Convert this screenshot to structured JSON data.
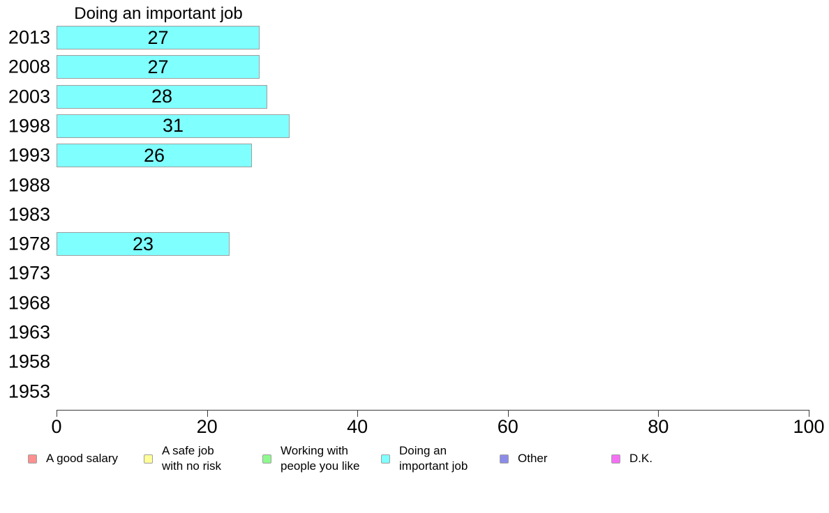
{
  "chart_data": {
    "type": "bar",
    "orientation": "horizontal",
    "title": "Doing an important job",
    "categories": [
      "2013",
      "2008",
      "2003",
      "1998",
      "1993",
      "1988",
      "1983",
      "1978",
      "1973",
      "1968",
      "1963",
      "1958",
      "1953"
    ],
    "values": [
      27,
      27,
      28,
      31,
      26,
      null,
      null,
      23,
      null,
      null,
      null,
      null,
      null
    ],
    "series_name": "Doing an important job",
    "xlabel": "",
    "ylabel": "",
    "xlim": [
      0,
      100
    ],
    "x_ticks": [
      0,
      20,
      40,
      60,
      80,
      100
    ],
    "grid": false,
    "bar_color": "#80ffff",
    "bar_border_color": "#9e9e9e",
    "value_labels_shown": true,
    "legend_position": "bottom",
    "legend": [
      {
        "label": "A good salary",
        "color": "#ff9090"
      },
      {
        "label": "A safe job\nwith no risk",
        "color": "#ffff99"
      },
      {
        "label": "Working with\npeople you like",
        "color": "#8efa8e"
      },
      {
        "label": "Doing an\nimportant job",
        "color": "#80ffff"
      },
      {
        "label": "Other",
        "color": "#8c8ce8"
      },
      {
        "label": "D.K.",
        "color": "#f56ff5"
      }
    ]
  }
}
